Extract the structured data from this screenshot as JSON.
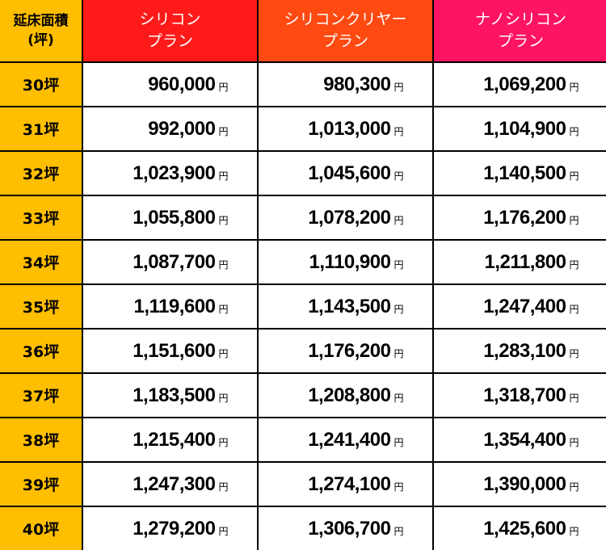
{
  "colors": {
    "corner_bg": "#FFBE00",
    "silicon_bg": "#FF1A1A",
    "clear_bg": "#FF4A12",
    "nano_bg": "#FF1464",
    "border": "#000000"
  },
  "header": {
    "corner_line1": "延床面積",
    "corner_line2": "(坪)",
    "plans": [
      {
        "line1": "シリコン",
        "line2": "プラン"
      },
      {
        "line1": "シリコンクリヤー",
        "line2": "プラン"
      },
      {
        "line1": "ナノシリコン",
        "line2": "プラン"
      }
    ]
  },
  "currency_unit": "円",
  "rows": [
    {
      "size": "30坪",
      "prices": [
        "960,000",
        "980,300",
        "1,069,200"
      ]
    },
    {
      "size": "31坪",
      "prices": [
        "992,000",
        "1,013,000",
        "1,104,900"
      ]
    },
    {
      "size": "32坪",
      "prices": [
        "1,023,900",
        "1,045,600",
        "1,140,500"
      ]
    },
    {
      "size": "33坪",
      "prices": [
        "1,055,800",
        "1,078,200",
        "1,176,200"
      ]
    },
    {
      "size": "34坪",
      "prices": [
        "1,087,700",
        "1,110,900",
        "1,211,800"
      ]
    },
    {
      "size": "35坪",
      "prices": [
        "1,119,600",
        "1,143,500",
        "1,247,400"
      ]
    },
    {
      "size": "36坪",
      "prices": [
        "1,151,600",
        "1,176,200",
        "1,283,100"
      ]
    },
    {
      "size": "37坪",
      "prices": [
        "1,183,500",
        "1,208,800",
        "1,318,700"
      ]
    },
    {
      "size": "38坪",
      "prices": [
        "1,215,400",
        "1,241,400",
        "1,354,400"
      ]
    },
    {
      "size": "39坪",
      "prices": [
        "1,247,300",
        "1,274,100",
        "1,390,000"
      ]
    },
    {
      "size": "40坪",
      "prices": [
        "1,279,200",
        "1,306,700",
        "1,425,600"
      ]
    }
  ]
}
